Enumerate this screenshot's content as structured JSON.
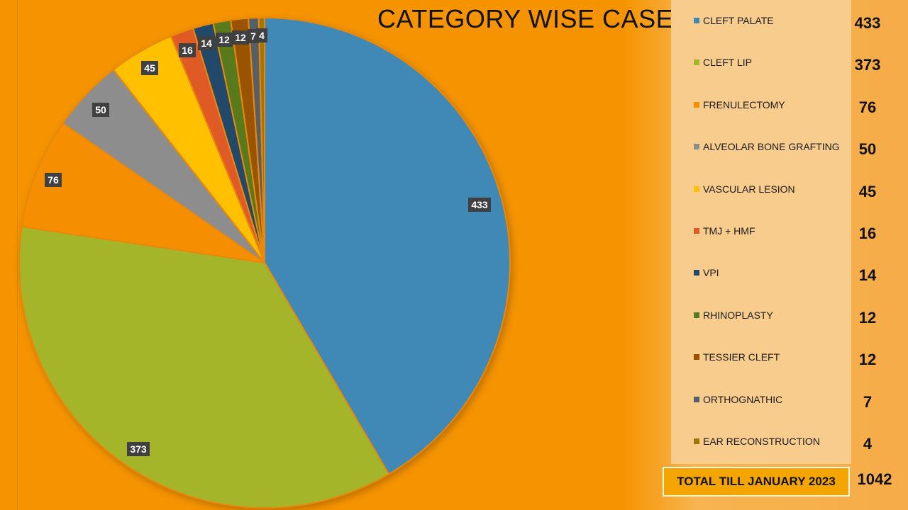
{
  "chart_data": {
    "type": "pie",
    "title": "CATEGORY WISE CASES",
    "categories": [
      "CLEFT PALATE",
      "CLEFT LIP",
      "FRENULECTOMY",
      "ALVEOLAR BONE GRAFTING",
      "VASCULAR LESION",
      "TMJ + HMF",
      "VPI",
      "RHINOPLASTY",
      "TESSIER CLEFT",
      "ORTHOGNATHIC",
      "EAR RECONSTRUCTION"
    ],
    "values": [
      433,
      373,
      76,
      50,
      45,
      16,
      14,
      12,
      12,
      7,
      4
    ],
    "colors": [
      "#3f88b6",
      "#a4b52a",
      "#f58e00",
      "#8d8d8d",
      "#ffc000",
      "#e05a26",
      "#244a6a",
      "#587a1e",
      "#9a5200",
      "#555f68",
      "#a07408"
    ],
    "legend": "right"
  },
  "total": {
    "label": "TOTAL TILL JANUARY 2023",
    "value": "1042"
  }
}
